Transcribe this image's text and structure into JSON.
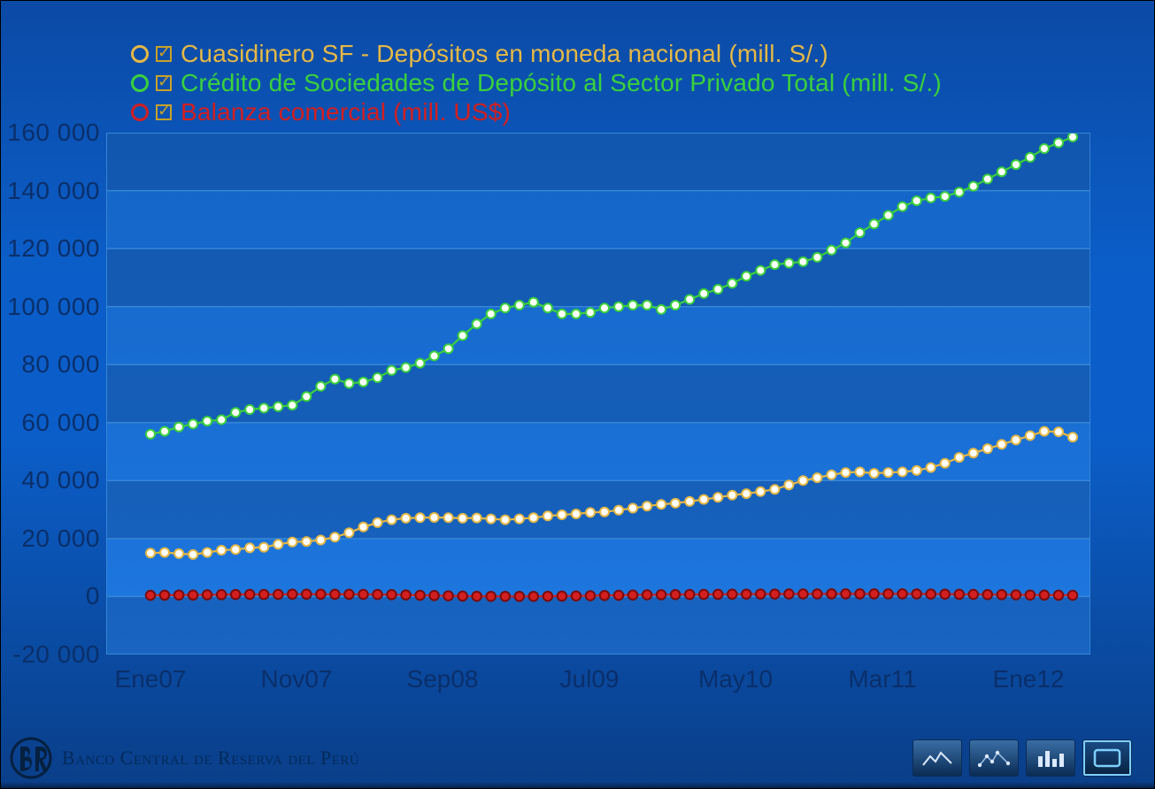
{
  "chart": {
    "type": "line",
    "background_gradient": [
      "#0b4aa5",
      "#0b5ec9",
      "#0b5ec9",
      "#0a3e88"
    ],
    "plot_background_top": "#1464c6",
    "plot_background_bottom": "#1e78e0",
    "band_color": "#0d3f85",
    "band_alpha": 0.35,
    "grid_color": "#3a89d8",
    "axis_color": "#3a89d8",
    "tick_label_color": "#0a2f6a",
    "tick_fontsize": 28,
    "legend_fontsize": 28,
    "ylim": [
      -20000,
      160000
    ],
    "yticks": [
      -20000,
      0,
      20000,
      40000,
      60000,
      80000,
      100000,
      120000,
      140000,
      160000
    ],
    "ytick_labels": [
      "-20 000",
      "0",
      "20 000",
      "40 000",
      "60 000",
      "80 000",
      "100 000",
      "120 000",
      "140 000",
      "160 000"
    ],
    "x_count": 66,
    "xtick_positions": [
      0,
      10,
      20,
      30,
      40,
      50,
      60
    ],
    "xtick_labels": [
      "Ene07",
      "Nov07",
      "Sep08",
      "Jul09",
      "May10",
      "Mar11",
      "Ene12"
    ],
    "series": [
      {
        "id": "cuasidinero",
        "label": "Cuasidinero SF - Depósitos en moneda nacional (mill. S/.)",
        "color": "#e6b844",
        "marker_fill": "#ffffff",
        "marker_border": "#e6b844",
        "line_width": 2.2,
        "marker_size": 6,
        "visible": true,
        "values": [
          15000,
          15200,
          14800,
          14500,
          15200,
          16000,
          16200,
          16800,
          17000,
          18000,
          18800,
          19000,
          19500,
          20500,
          22000,
          24000,
          25500,
          26500,
          27000,
          27200,
          27300,
          27200,
          27000,
          27100,
          26800,
          26500,
          26800,
          27200,
          27800,
          28200,
          28500,
          29000,
          29200,
          29800,
          30500,
          31200,
          31800,
          32200,
          32800,
          33500,
          34200,
          35000,
          35500,
          36200,
          37000,
          38500,
          40000,
          41000,
          42000,
          42800,
          43000,
          42500,
          42800,
          43000,
          43500,
          44500,
          46000,
          48000,
          49500,
          51000,
          52500,
          54000,
          55500,
          57000,
          56800,
          55000
        ]
      },
      {
        "id": "credito",
        "label": "Crédito de Sociedades de Depósito al Sector Privado Total (mill. S/.)",
        "color": "#3bd13b",
        "marker_fill": "#ffffff",
        "marker_border": "#3bd13b",
        "line_width": 2.2,
        "marker_size": 6,
        "visible": true,
        "values": [
          56000,
          57000,
          58500,
          59500,
          60500,
          61000,
          63500,
          64500,
          65000,
          65500,
          66000,
          69000,
          72500,
          75000,
          73500,
          74000,
          75500,
          78000,
          79000,
          80500,
          83000,
          85500,
          90000,
          94000,
          97500,
          99500,
          100500,
          101500,
          99500,
          97500,
          97500,
          98000,
          99500,
          100000,
          100500,
          100500,
          99000,
          100500,
          102500,
          104500,
          106000,
          108000,
          110500,
          112500,
          114500,
          115000,
          115500,
          117000,
          119500,
          122000,
          125500,
          128500,
          131500,
          134500,
          136500,
          137500,
          138000,
          139500,
          141500,
          144000,
          146500,
          149000,
          151500,
          154500,
          156500,
          158500
        ]
      },
      {
        "id": "balanza",
        "label": "Balanza comercial (mill. US$)",
        "color": "#d21f1f",
        "marker_fill": "#d21f1f",
        "marker_border": "#7a0b0b",
        "line_width": 2.2,
        "marker_size": 6.5,
        "visible": true,
        "values": [
          450,
          480,
          520,
          510,
          600,
          650,
          700,
          750,
          720,
          760,
          800,
          820,
          810,
          790,
          770,
          740,
          700,
          650,
          550,
          450,
          350,
          250,
          180,
          120,
          80,
          60,
          40,
          60,
          100,
          160,
          230,
          300,
          380,
          450,
          520,
          580,
          630,
          680,
          720,
          760,
          790,
          820,
          850,
          870,
          880,
          890,
          900,
          910,
          920,
          930,
          940,
          940,
          930,
          920,
          900,
          870,
          830,
          790,
          740,
          690,
          640,
          590,
          540,
          500,
          470,
          450
        ]
      }
    ]
  },
  "legend_rows": [
    {
      "id": "cuasidinero",
      "color": "#e6b844"
    },
    {
      "id": "credito",
      "color": "#3bd13b"
    },
    {
      "id": "balanza",
      "color": "#d21f1f"
    }
  ],
  "footer": {
    "bank": "Banco Central de Reserva del Perú",
    "logo_color": "#06203f",
    "buttons": [
      {
        "id": "line-chart",
        "selected": false
      },
      {
        "id": "scatter-chart",
        "selected": false
      },
      {
        "id": "bar-chart",
        "selected": false
      },
      {
        "id": "fullscreen",
        "selected": true
      }
    ]
  }
}
